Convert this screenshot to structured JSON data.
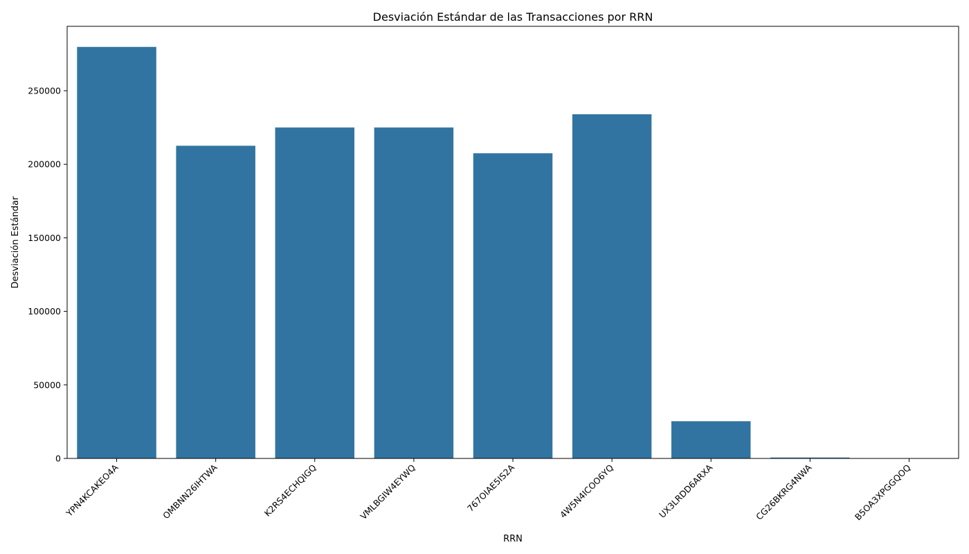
{
  "chart_data": {
    "type": "bar",
    "title": "Desviación Estándar de las Transacciones por RRN",
    "xlabel": "RRN",
    "ylabel": "Desviación Estándar",
    "categories": [
      "YPN4KCAKEO4A",
      "OMBNN26IHTWA",
      "K2RS4ECHQIGQ",
      "VMLBGIW4EYWQ",
      "767OIAE5IS2A",
      "4W5N4ICOO6YQ",
      "UX3LRDD6ARXA",
      "CG26BKRG4NWA",
      "B5OA3XPGGQOQ"
    ],
    "values": [
      279800,
      212600,
      225000,
      225000,
      207500,
      234000,
      25300,
      600,
      0
    ],
    "ylim": [
      0,
      293800
    ],
    "yticks": [
      0,
      50000,
      100000,
      150000,
      200000,
      250000
    ],
    "bar_color": "#3274a1",
    "grid": false,
    "legend": "none"
  }
}
